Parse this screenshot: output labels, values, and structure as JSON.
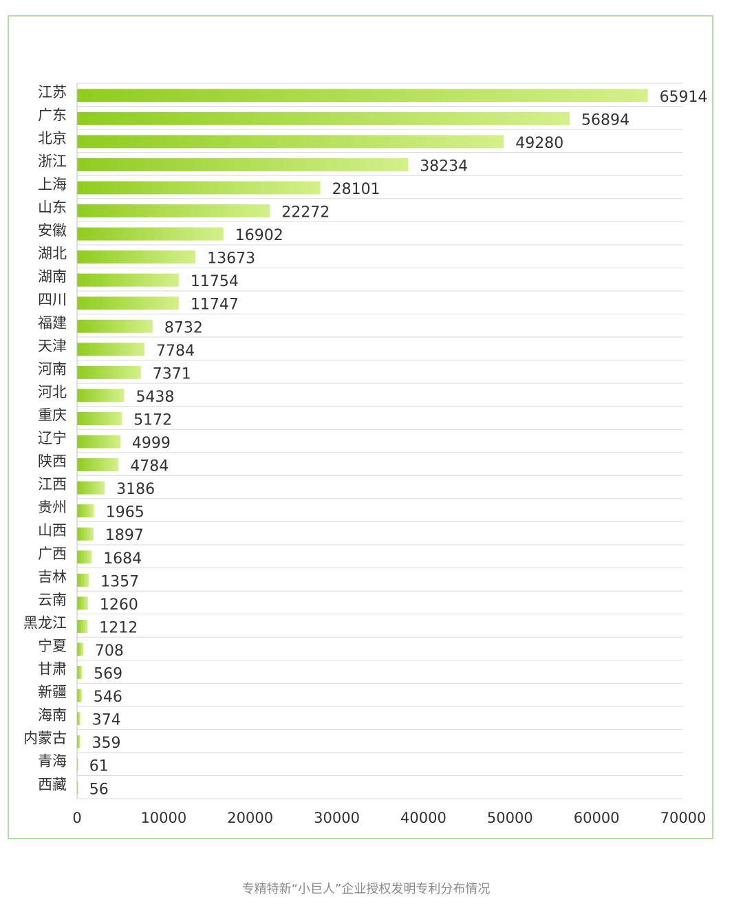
{
  "caption": "专精特新“小巨人”企业授权发明专利分布情况",
  "colors": {
    "bar_start": "#8fcc1f",
    "bar_end": "#d4f08a",
    "frame": "#b5dea6",
    "grid": "#d9d9d9",
    "text": "#333333"
  },
  "chart_data": {
    "type": "bar",
    "orientation": "horizontal",
    "categories": [
      "江苏",
      "广东",
      "北京",
      "浙江",
      "上海",
      "山东",
      "安徽",
      "湖北",
      "湖南",
      "四川",
      "福建",
      "天津",
      "河南",
      "河北",
      "重庆",
      "辽宁",
      "陕西",
      "江西",
      "贵州",
      "山西",
      "广西",
      "吉林",
      "云南",
      "黑龙江",
      "宁夏",
      "甘肃",
      "新疆",
      "海南",
      "内蒙古",
      "青海",
      "西藏"
    ],
    "values": [
      65914,
      56894,
      49280,
      38234,
      28101,
      22272,
      16902,
      13673,
      11754,
      11747,
      8732,
      7784,
      7371,
      5438,
      5172,
      4999,
      4784,
      3186,
      1965,
      1897,
      1684,
      1357,
      1260,
      1212,
      708,
      569,
      546,
      374,
      359,
      61,
      56
    ],
    "xlim": [
      0,
      70000
    ],
    "xticks": [
      0,
      10000,
      20000,
      30000,
      40000,
      50000,
      60000,
      70000
    ],
    "data_labels": true,
    "grid": "horizontal"
  }
}
